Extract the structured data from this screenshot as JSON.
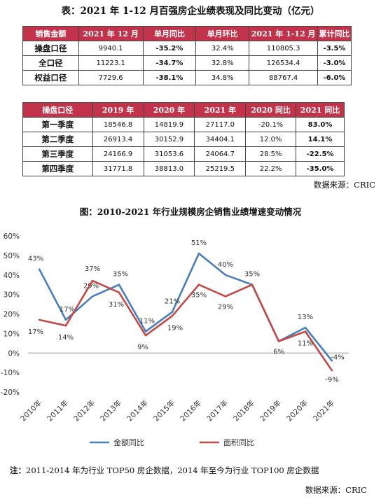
{
  "table1": {
    "title": "表：2021 年 1-12 月百强房企业绩表现及同比变动（亿元）",
    "headers": [
      "销售金额",
      "2021 年 12 月",
      "单月同比",
      "单月环比",
      "2021 年 1-12 月",
      "累计同比"
    ],
    "rows": [
      [
        "操盘口径",
        "9940.1",
        "-35.2%",
        "32.4%",
        "110805.3",
        "-3.5%"
      ],
      [
        "全口径",
        "11223.1",
        "-34.7%",
        "32.8%",
        "126534.4",
        "-3.0%"
      ],
      [
        "权益口径",
        "7729.6",
        "-38.1%",
        "34.8%",
        "88767.4",
        "-6.0%"
      ]
    ]
  },
  "table2": {
    "headers": [
      "操盘口径",
      "2019 年",
      "2020 年",
      "2021 年",
      "2020 同比",
      "2021 同比"
    ],
    "rows": [
      [
        "第一季度",
        "18546.8",
        "14819.9",
        "27117.0",
        "-20.1%",
        "83.0%"
      ],
      [
        "第二季度",
        "26913.4",
        "30152.9",
        "34404.1",
        "12.0%",
        "14.1%"
      ],
      [
        "第三季度",
        "24166.9",
        "31053.6",
        "24064.7",
        "28.5%",
        "-22.5%"
      ],
      [
        "第四季度",
        "31771.8",
        "38813.0",
        "25219.5",
        "22.2%",
        "-35.0%"
      ]
    ]
  },
  "source1": "数据来源：CRIC",
  "chart_data": {
    "type": "line",
    "title": "图：2010-2021 年行业规模房企销售业绩增速变动情况",
    "categories": [
      "2010年",
      "2011年",
      "2012年",
      "2013年",
      "2014年",
      "2015年",
      "2016年",
      "2017年",
      "2018年",
      "2019年",
      "2020年",
      "2021年"
    ],
    "series": [
      {
        "name": "金额同比",
        "color": "#4a7ebb",
        "values": [
          43,
          17,
          29,
          35,
          11,
          21,
          51,
          40,
          35,
          6,
          13,
          -4
        ],
        "labels": [
          "43%",
          "17%",
          "29%",
          "35%",
          "11%",
          "21%",
          "51%",
          "40%",
          "35%",
          "6%",
          "13%",
          "-4%"
        ]
      },
      {
        "name": "面积同比",
        "color": "#be4b48",
        "values": [
          17,
          14,
          37,
          31,
          9,
          19,
          35,
          29,
          35,
          6,
          11,
          -9
        ],
        "labels": [
          "17%",
          "14%",
          "37%",
          "31%",
          "9%",
          "19%",
          "35%",
          "29%",
          "",
          "",
          "11%",
          "-9%"
        ]
      }
    ],
    "ylim": [
      -20,
      60
    ],
    "yticks": [
      "-20%",
      "-10%",
      "0%",
      "10%",
      "20%",
      "30%",
      "40%",
      "50%",
      "60%"
    ],
    "grid": false,
    "legend": "bottom"
  },
  "note_label": "注：",
  "note_text": "2011-2014 年为行业 TOP50 房企数据，2014 年至今为行业 TOP100 房企数据",
  "source2": "数据来源：CRIC"
}
